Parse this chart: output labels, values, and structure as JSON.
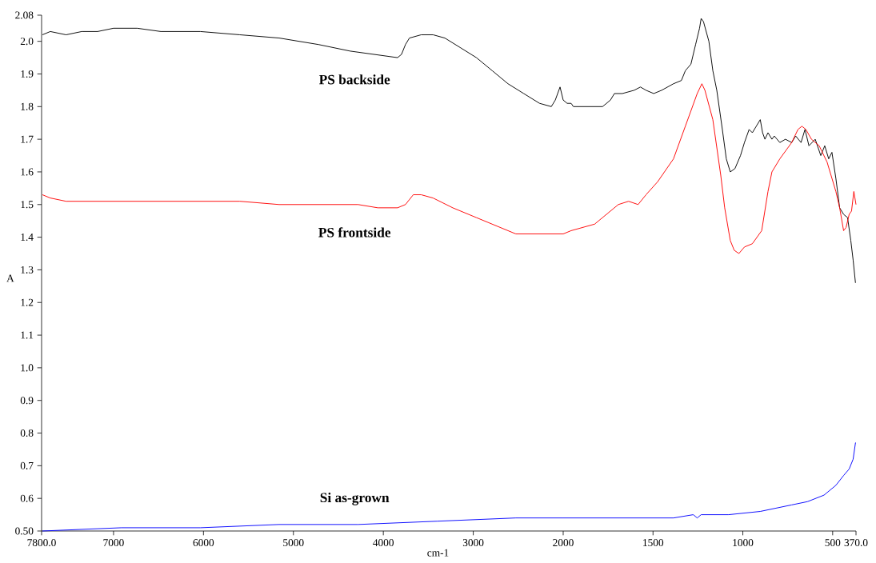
{
  "chart_data": [
    {
      "type": "line",
      "xlabel": "cm-1",
      "ylabel": "A",
      "xlim": [
        7800,
        2000
      ],
      "ylim": [
        0.5,
        2.08
      ],
      "xticks": [
        {
          "value": 7800,
          "label": "7800.0"
        },
        7000,
        6000,
        5000,
        4000,
        3000,
        2000
      ],
      "yticks": [
        {
          "value": 0.5,
          "label": "0.50"
        },
        0.6,
        0.7,
        0.8,
        0.9,
        {
          "value": 1.0,
          "label": "1.0"
        },
        1.1,
        1.2,
        1.3,
        1.4,
        1.5,
        1.6,
        1.7,
        1.8,
        1.9,
        {
          "value": 2.0,
          "label": "2.0"
        },
        2.08
      ],
      "series": [
        {
          "name": "PS backside",
          "color": "#000000",
          "x": [
            7791,
            7703,
            7528,
            7353,
            7177,
            7000,
            6737,
            6474,
            6035,
            5596,
            5158,
            4719,
            4368,
            4105,
            3842,
            3798,
            3754,
            3710,
            3579,
            3447,
            3316,
            3140,
            2965,
            2789,
            2614,
            2439,
            2263,
            2132,
            2088,
            2035,
            2000
          ],
          "values": [
            2.02,
            2.03,
            2.02,
            2.03,
            2.03,
            2.04,
            2.04,
            2.03,
            2.03,
            2.02,
            2.01,
            1.99,
            1.97,
            1.96,
            1.95,
            1.96,
            1.99,
            2.01,
            2.02,
            2.02,
            2.01,
            1.98,
            1.95,
            1.91,
            1.87,
            1.84,
            1.81,
            1.8,
            1.82,
            1.86,
            1.82
          ]
        },
        {
          "name": "PS frontside",
          "color": "#ff0000",
          "x": [
            7791,
            7703,
            7528,
            6912,
            6474,
            5596,
            5158,
            4719,
            4281,
            4061,
            3842,
            3754,
            3667,
            3579,
            3447,
            3228,
            2965,
            2702,
            2526,
            2263,
            2088,
            2000
          ],
          "values": [
            1.53,
            1.52,
            1.51,
            1.51,
            1.51,
            1.51,
            1.5,
            1.5,
            1.5,
            1.49,
            1.49,
            1.5,
            1.53,
            1.53,
            1.52,
            1.49,
            1.46,
            1.43,
            1.41,
            1.41,
            1.41,
            1.41
          ]
        },
        {
          "name": "Si as-grown",
          "color": "#0000ff",
          "x": [
            7791,
            6912,
            6035,
            5158,
            4281,
            3403,
            2526,
            2088,
            2000
          ],
          "values": [
            0.5,
            0.51,
            0.51,
            0.52,
            0.52,
            0.53,
            0.54,
            0.54,
            0.54
          ]
        }
      ]
    },
    {
      "type": "line",
      "xlim": [
        2000,
        370
      ],
      "ylim": [
        0.5,
        2.08
      ],
      "tick_labels": "x",
      "xticks": [
        1500,
        1000,
        500,
        {
          "value": 370,
          "label": "370.0"
        }
      ],
      "series": [
        {
          "color": "#000000",
          "x": [
            2000,
            1978,
            1956,
            1943,
            1912,
            1781,
            1737,
            1715,
            1671,
            1605,
            1570,
            1539,
            1496,
            1452,
            1386,
            1342,
            1320,
            1289,
            1263,
            1241,
            1232,
            1219,
            1189,
            1167,
            1145,
            1114,
            1092,
            1070,
            1044,
            1013,
            991,
            965,
            947,
            925,
            903,
            890,
            877,
            860,
            838,
            825,
            794,
            763,
            728,
            706,
            676,
            654,
            632,
            597,
            566,
            544,
            522,
            504,
            482,
            461,
            439,
            417,
            399,
            386,
            373
          ],
          "values": [
            1.82,
            1.81,
            1.81,
            1.8,
            1.8,
            1.8,
            1.82,
            1.84,
            1.84,
            1.85,
            1.86,
            1.85,
            1.84,
            1.85,
            1.87,
            1.88,
            1.91,
            1.93,
            1.99,
            2.04,
            2.07,
            2.06,
            2.0,
            1.91,
            1.85,
            1.73,
            1.64,
            1.6,
            1.61,
            1.65,
            1.69,
            1.73,
            1.72,
            1.74,
            1.76,
            1.72,
            1.7,
            1.72,
            1.7,
            1.71,
            1.69,
            1.7,
            1.69,
            1.71,
            1.69,
            1.73,
            1.68,
            1.7,
            1.65,
            1.68,
            1.64,
            1.66,
            1.58,
            1.49,
            1.47,
            1.46,
            1.39,
            1.33,
            1.26
          ]
        },
        {
          "color": "#ff0000",
          "x": [
            2000,
            1956,
            1825,
            1737,
            1693,
            1636,
            1583,
            1539,
            1474,
            1386,
            1320,
            1254,
            1228,
            1211,
            1167,
            1123,
            1101,
            1070,
            1048,
            1022,
            991,
            947,
            895,
            860,
            838,
            794,
            728,
            693,
            671,
            649,
            618,
            575,
            531,
            482,
            461,
            439,
            425,
            408,
            395,
            382,
            370
          ],
          "values": [
            1.41,
            1.42,
            1.44,
            1.48,
            1.5,
            1.51,
            1.5,
            1.53,
            1.57,
            1.64,
            1.74,
            1.84,
            1.87,
            1.85,
            1.76,
            1.59,
            1.49,
            1.39,
            1.36,
            1.35,
            1.37,
            1.38,
            1.42,
            1.54,
            1.6,
            1.64,
            1.69,
            1.73,
            1.74,
            1.73,
            1.7,
            1.68,
            1.63,
            1.54,
            1.49,
            1.42,
            1.43,
            1.47,
            1.48,
            1.54,
            1.5
          ]
        },
        {
          "color": "#0000ff",
          "x": [
            2000,
            1781,
            1386,
            1276,
            1254,
            1232,
            1079,
            903,
            728,
            640,
            548,
            482,
            439,
            408,
            386,
            373,
            370
          ],
          "values": [
            0.54,
            0.54,
            0.54,
            0.55,
            0.54,
            0.55,
            0.55,
            0.56,
            0.58,
            0.59,
            0.61,
            0.64,
            0.67,
            0.69,
            0.72,
            0.77,
            0.77
          ]
        }
      ]
    }
  ]
}
